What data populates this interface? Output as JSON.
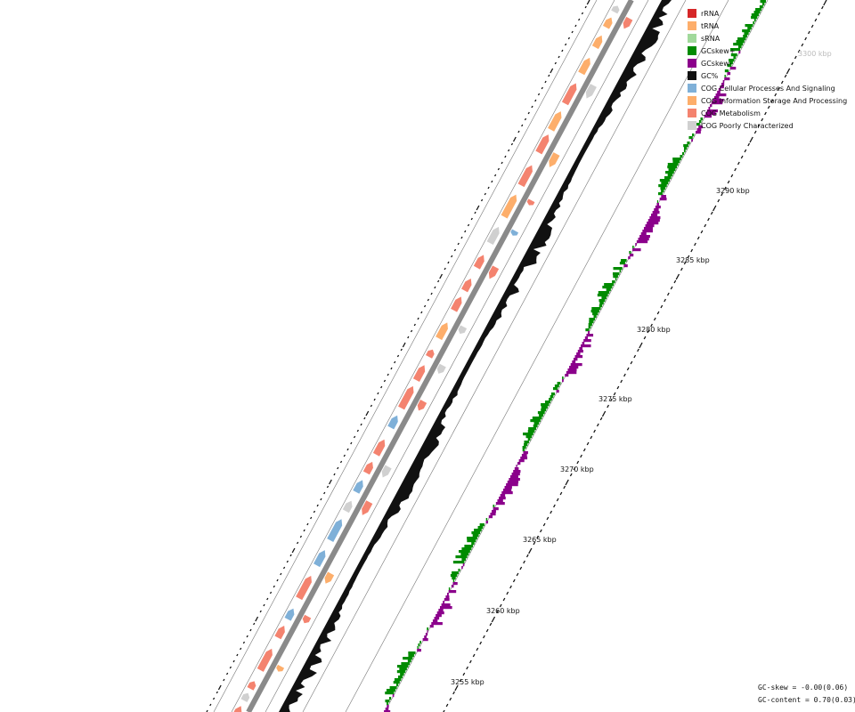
{
  "legend": [
    {
      "label": "rRNA",
      "color": "#d62728"
    },
    {
      "label": "tRNA",
      "color": "#fdae6b"
    },
    {
      "label": "sRNA",
      "color": "#a1d99b"
    },
    {
      "label": "GCskew+",
      "color": "#008b00"
    },
    {
      "label": "GCskew-",
      "color": "#8b008b"
    },
    {
      "label": "GC%",
      "color": "#111111"
    },
    {
      "label": "COG Cellular Processes And Signaling",
      "color": "#7fb0d8"
    },
    {
      "label": "COG Information Storage And Processing",
      "color": "#fdae6b"
    },
    {
      "label": "COG Metabolism",
      "color": "#f4836f"
    },
    {
      "label": "COG Poorly Characterized",
      "color": "#d0d0d0"
    }
  ],
  "scale_labels": [
    "3255 kbp",
    "3260 kbp",
    "3265 kbp",
    "3270 kbp",
    "3275 kbp",
    "3280 kbp",
    "3285 kbp",
    "3290 kbp",
    "3300 kbp"
  ],
  "stats": {
    "gc_skew": "GC-skew = -0.00(0.06)",
    "gc_content": "GC-content = 0.70(0.03)"
  },
  "chart_data": {
    "type": "circular-genome-map",
    "visible_range_kbp": [
      3252,
      3302
    ],
    "tracks": [
      "forward CDS",
      "reverse CDS",
      "GC content",
      "GC skew"
    ],
    "gc_skew_overall": "-0.00(0.06)",
    "gc_content_overall": "0.70(0.03)",
    "colors": {
      "metabolism": "#f4836f",
      "cellular_processes": "#7fb0d8",
      "information_storage": "#fdae6b",
      "poorly_characterized": "#d0d0d0",
      "gc_content": "#111111",
      "gc_skew_plus": "#008b00",
      "gc_skew_minus": "#8b008b"
    }
  }
}
